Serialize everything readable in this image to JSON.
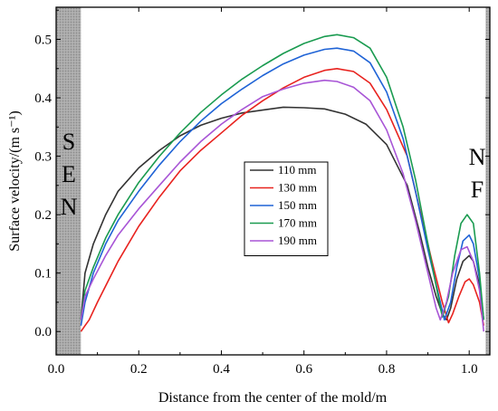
{
  "chart_data": {
    "type": "line",
    "xlabel": "Distance from the center of the mold/m",
    "ylabel": "Surface velocity/(m s⁻¹)",
    "xlim": [
      0.0,
      1.05
    ],
    "ylim": [
      -0.04,
      0.555
    ],
    "x_ticks": [
      "0.0",
      "0.2",
      "0.4",
      "0.6",
      "0.8",
      "1.0"
    ],
    "y_ticks": [
      "0.0",
      "0.1",
      "0.2",
      "0.3",
      "0.4",
      "0.5"
    ],
    "grid": false,
    "legend_position": "center",
    "regions": [
      {
        "label": "SEN",
        "letters": [
          "S",
          "E",
          "N"
        ],
        "x_range": [
          0.0,
          0.06
        ],
        "fill": "#a6a6a6"
      },
      {
        "label": "NF",
        "letters": [
          "N",
          "F"
        ],
        "x_range": [
          1.04,
          1.05
        ],
        "fill": "#a6a6a6"
      }
    ],
    "series": [
      {
        "name": "110 mm",
        "color": "#333333",
        "points": [
          [
            0.06,
            0.02
          ],
          [
            0.07,
            0.1
          ],
          [
            0.09,
            0.15
          ],
          [
            0.12,
            0.2
          ],
          [
            0.15,
            0.24
          ],
          [
            0.2,
            0.28
          ],
          [
            0.25,
            0.31
          ],
          [
            0.3,
            0.335
          ],
          [
            0.35,
            0.353
          ],
          [
            0.4,
            0.365
          ],
          [
            0.45,
            0.374
          ],
          [
            0.5,
            0.379
          ],
          [
            0.55,
            0.384
          ],
          [
            0.6,
            0.383
          ],
          [
            0.65,
            0.381
          ],
          [
            0.7,
            0.372
          ],
          [
            0.75,
            0.355
          ],
          [
            0.8,
            0.32
          ],
          [
            0.85,
            0.25
          ],
          [
            0.88,
            0.17
          ],
          [
            0.9,
            0.11
          ],
          [
            0.92,
            0.06
          ],
          [
            0.935,
            0.03
          ],
          [
            0.945,
            0.02
          ],
          [
            0.955,
            0.04
          ],
          [
            0.97,
            0.09
          ],
          [
            0.985,
            0.12
          ],
          [
            1.0,
            0.13
          ],
          [
            1.01,
            0.12
          ],
          [
            1.025,
            0.08
          ],
          [
            1.035,
            0.02
          ]
        ]
      },
      {
        "name": "130 mm",
        "color": "#e8231f",
        "points": [
          [
            0.06,
            0.0
          ],
          [
            0.07,
            0.01
          ],
          [
            0.08,
            0.02
          ],
          [
            0.1,
            0.05
          ],
          [
            0.15,
            0.12
          ],
          [
            0.2,
            0.18
          ],
          [
            0.25,
            0.23
          ],
          [
            0.3,
            0.275
          ],
          [
            0.35,
            0.31
          ],
          [
            0.4,
            0.34
          ],
          [
            0.45,
            0.37
          ],
          [
            0.5,
            0.395
          ],
          [
            0.55,
            0.417
          ],
          [
            0.6,
            0.435
          ],
          [
            0.65,
            0.447
          ],
          [
            0.68,
            0.45
          ],
          [
            0.72,
            0.445
          ],
          [
            0.76,
            0.425
          ],
          [
            0.8,
            0.38
          ],
          [
            0.85,
            0.3
          ],
          [
            0.88,
            0.21
          ],
          [
            0.91,
            0.12
          ],
          [
            0.935,
            0.05
          ],
          [
            0.95,
            0.015
          ],
          [
            0.96,
            0.03
          ],
          [
            0.975,
            0.06
          ],
          [
            0.99,
            0.085
          ],
          [
            1.0,
            0.09
          ],
          [
            1.01,
            0.08
          ],
          [
            1.025,
            0.05
          ],
          [
            1.035,
            0.01
          ]
        ]
      },
      {
        "name": "150 mm",
        "color": "#1f63d6",
        "points": [
          [
            0.06,
            0.01
          ],
          [
            0.07,
            0.05
          ],
          [
            0.09,
            0.1
          ],
          [
            0.12,
            0.15
          ],
          [
            0.15,
            0.19
          ],
          [
            0.2,
            0.24
          ],
          [
            0.25,
            0.285
          ],
          [
            0.3,
            0.325
          ],
          [
            0.35,
            0.36
          ],
          [
            0.4,
            0.39
          ],
          [
            0.45,
            0.415
          ],
          [
            0.5,
            0.438
          ],
          [
            0.55,
            0.458
          ],
          [
            0.6,
            0.473
          ],
          [
            0.65,
            0.483
          ],
          [
            0.68,
            0.485
          ],
          [
            0.72,
            0.48
          ],
          [
            0.76,
            0.46
          ],
          [
            0.8,
            0.41
          ],
          [
            0.84,
            0.33
          ],
          [
            0.87,
            0.24
          ],
          [
            0.9,
            0.14
          ],
          [
            0.93,
            0.05
          ],
          [
            0.94,
            0.02
          ],
          [
            0.955,
            0.05
          ],
          [
            0.97,
            0.11
          ],
          [
            0.985,
            0.155
          ],
          [
            1.0,
            0.165
          ],
          [
            1.01,
            0.15
          ],
          [
            1.025,
            0.09
          ],
          [
            1.035,
            0.02
          ]
        ]
      },
      {
        "name": "170 mm",
        "color": "#1a9b50",
        "points": [
          [
            0.06,
            0.02
          ],
          [
            0.07,
            0.07
          ],
          [
            0.09,
            0.11
          ],
          [
            0.12,
            0.16
          ],
          [
            0.15,
            0.2
          ],
          [
            0.2,
            0.255
          ],
          [
            0.25,
            0.3
          ],
          [
            0.3,
            0.34
          ],
          [
            0.35,
            0.375
          ],
          [
            0.4,
            0.405
          ],
          [
            0.45,
            0.432
          ],
          [
            0.5,
            0.455
          ],
          [
            0.55,
            0.476
          ],
          [
            0.6,
            0.493
          ],
          [
            0.65,
            0.505
          ],
          [
            0.68,
            0.508
          ],
          [
            0.72,
            0.503
          ],
          [
            0.76,
            0.485
          ],
          [
            0.8,
            0.435
          ],
          [
            0.84,
            0.35
          ],
          [
            0.87,
            0.26
          ],
          [
            0.9,
            0.15
          ],
          [
            0.925,
            0.06
          ],
          [
            0.935,
            0.025
          ],
          [
            0.95,
            0.06
          ],
          [
            0.965,
            0.13
          ],
          [
            0.98,
            0.185
          ],
          [
            0.995,
            0.2
          ],
          [
            1.01,
            0.185
          ],
          [
            1.025,
            0.1
          ],
          [
            1.035,
            0.02
          ]
        ]
      },
      {
        "name": "190 mm",
        "color": "#a855d6",
        "points": [
          [
            0.06,
            0.02
          ],
          [
            0.07,
            0.06
          ],
          [
            0.09,
            0.09
          ],
          [
            0.12,
            0.13
          ],
          [
            0.15,
            0.165
          ],
          [
            0.2,
            0.21
          ],
          [
            0.25,
            0.25
          ],
          [
            0.3,
            0.29
          ],
          [
            0.35,
            0.325
          ],
          [
            0.4,
            0.355
          ],
          [
            0.45,
            0.38
          ],
          [
            0.5,
            0.402
          ],
          [
            0.55,
            0.415
          ],
          [
            0.6,
            0.425
          ],
          [
            0.65,
            0.43
          ],
          [
            0.68,
            0.428
          ],
          [
            0.72,
            0.418
          ],
          [
            0.76,
            0.395
          ],
          [
            0.8,
            0.345
          ],
          [
            0.84,
            0.27
          ],
          [
            0.87,
            0.19
          ],
          [
            0.9,
            0.1
          ],
          [
            0.92,
            0.04
          ],
          [
            0.93,
            0.02
          ],
          [
            0.945,
            0.05
          ],
          [
            0.96,
            0.1
          ],
          [
            0.98,
            0.14
          ],
          [
            0.995,
            0.145
          ],
          [
            1.01,
            0.12
          ],
          [
            1.025,
            0.07
          ],
          [
            1.035,
            0.0
          ]
        ]
      }
    ]
  }
}
